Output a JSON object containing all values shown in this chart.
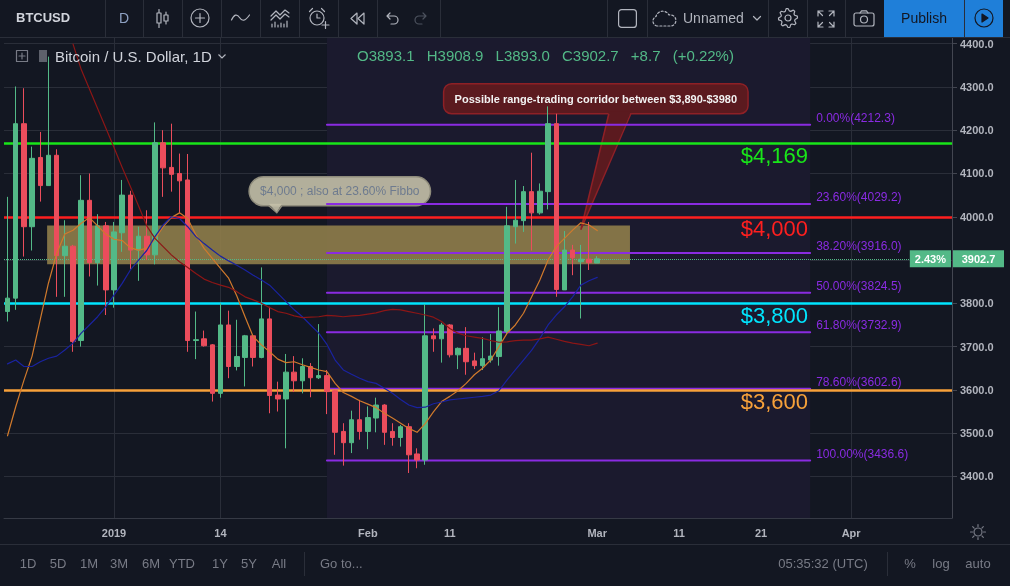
{
  "chart_data": {
    "type": "candlestick",
    "title": "Bitcoin / U.S. Dollar, 1D",
    "subtitle": "O3893.1 H3908.9 L3893.0 C3902.7 +8.7 (+0.22%)",
    "x": [
      "2018-12-19",
      "2018-12-20",
      "2018-12-21",
      "2018-12-22",
      "2018-12-23",
      "2018-12-24",
      "2018-12-25",
      "2018-12-26",
      "2018-12-27",
      "2018-12-28",
      "2018-12-29",
      "2018-12-30",
      "2018-12-31",
      "2019-01-01",
      "2019-01-02",
      "2019-01-03",
      "2019-01-04",
      "2019-01-05",
      "2019-01-06",
      "2019-01-07",
      "2019-01-08",
      "2019-01-09",
      "2019-01-10",
      "2019-01-11",
      "2019-01-12",
      "2019-01-13",
      "2019-01-14",
      "2019-01-15",
      "2019-01-16",
      "2019-01-17",
      "2019-01-18",
      "2019-01-19",
      "2019-01-20",
      "2019-01-21",
      "2019-01-22",
      "2019-01-23",
      "2019-01-24",
      "2019-01-25",
      "2019-01-26",
      "2019-01-27",
      "2019-01-28",
      "2019-01-29",
      "2019-01-30",
      "2019-01-31",
      "2019-02-01",
      "2019-02-02",
      "2019-02-03",
      "2019-02-04",
      "2019-02-05",
      "2019-02-06",
      "2019-02-07",
      "2019-02-08",
      "2019-02-09",
      "2019-02-10",
      "2019-02-11",
      "2019-02-12",
      "2019-02-13",
      "2019-02-14",
      "2019-02-15",
      "2019-02-16",
      "2019-02-17",
      "2019-02-18",
      "2019-02-19",
      "2019-02-20",
      "2019-02-21",
      "2019-02-22",
      "2019-02-23",
      "2019-02-24",
      "2019-02-25",
      "2019-02-26",
      "2019-02-27",
      "2019-02-28",
      "2019-03-01"
    ],
    "ohlc": [
      [
        3781,
        4046,
        3758,
        3812
      ],
      [
        3812,
        4301,
        3785,
        4215
      ],
      [
        4215,
        4297,
        3908,
        3977
      ],
      [
        3977,
        4162,
        3922,
        4135
      ],
      [
        4137,
        4196,
        4035,
        4072
      ],
      [
        4072,
        4370,
        4072,
        4142
      ],
      [
        4142,
        4156,
        3815,
        3910
      ],
      [
        3910,
        3992,
        3815,
        3932
      ],
      [
        3932,
        3935,
        3688,
        3712
      ],
      [
        3714,
        4096,
        3700,
        4038
      ],
      [
        4038,
        4100,
        3862,
        3894
      ],
      [
        3894,
        4006,
        3841,
        3979
      ],
      [
        3979,
        3988,
        3773,
        3831
      ],
      [
        3831,
        3988,
        3790,
        3965
      ],
      [
        3963,
        4085,
        3919,
        4050
      ],
      [
        4050,
        4060,
        3879,
        3923
      ],
      [
        3923,
        3977,
        3852,
        3955
      ],
      [
        3955,
        4015,
        3900,
        3912
      ],
      [
        3912,
        4218,
        3890,
        4171
      ],
      [
        4171,
        4200,
        4046,
        4113
      ],
      [
        4114,
        4215,
        4058,
        4098
      ],
      [
        4100,
        4146,
        4008,
        4083
      ],
      [
        4085,
        4145,
        3688,
        3714
      ],
      [
        3714,
        3781,
        3671,
        3716
      ],
      [
        3718,
        3737,
        3700,
        3702
      ],
      [
        3704,
        3706,
        3573,
        3592
      ],
      [
        3592,
        3800,
        3582,
        3750
      ],
      [
        3750,
        3783,
        3627,
        3654
      ],
      [
        3654,
        3762,
        3645,
        3677
      ],
      [
        3675,
        3727,
        3608,
        3725
      ],
      [
        3725,
        3727,
        3654,
        3675
      ],
      [
        3675,
        3883,
        3673,
        3764
      ],
      [
        3764,
        3792,
        3546,
        3587
      ],
      [
        3588,
        3619,
        3550,
        3579
      ],
      [
        3579,
        3683,
        3465,
        3641
      ],
      [
        3641,
        3678,
        3595,
        3621
      ],
      [
        3621,
        3673,
        3592,
        3654
      ],
      [
        3654,
        3662,
        3583,
        3628
      ],
      [
        3628,
        3752,
        3625,
        3633
      ],
      [
        3633,
        3646,
        3544,
        3596
      ],
      [
        3598,
        3600,
        3450,
        3502
      ],
      [
        3504,
        3523,
        3425,
        3478
      ],
      [
        3478,
        3552,
        3454,
        3531
      ],
      [
        3531,
        3577,
        3485,
        3504
      ],
      [
        3504,
        3562,
        3463,
        3536
      ],
      [
        3535,
        3582,
        3502,
        3565
      ],
      [
        3565,
        3567,
        3473,
        3502
      ],
      [
        3504,
        3523,
        3471,
        3490
      ],
      [
        3490,
        3519,
        3469,
        3515
      ],
      [
        3515,
        3523,
        3408,
        3450
      ],
      [
        3452,
        3465,
        3419,
        3438
      ],
      [
        3438,
        3798,
        3427,
        3725
      ],
      [
        3725,
        3742,
        3688,
        3718
      ],
      [
        3718,
        3755,
        3663,
        3750
      ],
      [
        3750,
        3752,
        3675,
        3681
      ],
      [
        3681,
        3698,
        3648,
        3696
      ],
      [
        3696,
        3745,
        3635,
        3665
      ],
      [
        3667,
        3686,
        3648,
        3656
      ],
      [
        3656,
        3722,
        3646,
        3672
      ],
      [
        3669,
        3729,
        3663,
        3678
      ],
      [
        3677,
        3791,
        3656,
        3736
      ],
      [
        3735,
        4023,
        3727,
        3979
      ],
      [
        3977,
        4085,
        3938,
        3992
      ],
      [
        3991,
        4071,
        3965,
        4058
      ],
      [
        4058,
        4148,
        3922,
        4009
      ],
      [
        4009,
        4077,
        4005,
        4059
      ],
      [
        4058,
        4255,
        4017,
        4215
      ],
      [
        4215,
        4238,
        3815,
        3832
      ],
      [
        3831,
        3967,
        3831,
        3923
      ],
      [
        3923,
        3935,
        3865,
        3905
      ],
      [
        3896,
        3935,
        3765,
        3902
      ],
      [
        3902,
        3988,
        3877,
        3894
      ],
      [
        3893.1,
        3908.9,
        3893.0,
        3902.7
      ]
    ],
    "colors": [
      "#53b987",
      "#53b987",
      "#eb4d5c",
      "#53b987",
      "#eb4d5c",
      "#53b987",
      "#eb4d5c",
      "#53b987",
      "#eb4d5c",
      "#53b987",
      "#eb4d5c",
      "#53b987",
      "#eb4d5c",
      "#53b987",
      "#53b987",
      "#eb4d5c",
      "#53b987",
      "#eb4d5c",
      "#53b987",
      "#eb4d5c",
      "#eb4d5c",
      "#eb4d5c",
      "#eb4d5c",
      "#53b987",
      "#eb4d5c",
      "#eb4d5c",
      "#53b987",
      "#eb4d5c",
      "#53b987",
      "#53b987",
      "#eb4d5c",
      "#53b987",
      "#eb4d5c",
      "#eb4d5c",
      "#53b987",
      "#eb4d5c",
      "#53b987",
      "#eb4d5c",
      "#53b987",
      "#eb4d5c",
      "#eb4d5c",
      "#eb4d5c",
      "#53b987",
      "#eb4d5c",
      "#53b987",
      "#53b987",
      "#eb4d5c",
      "#eb4d5c",
      "#53b987",
      "#eb4d5c",
      "#eb4d5c",
      "#53b987",
      "#eb4d5c",
      "#53b987",
      "#eb4d5c",
      "#53b987",
      "#eb4d5c",
      "#eb4d5c",
      "#53b987",
      "#53b987",
      "#53b987",
      "#53b987",
      "#53b987",
      "#53b987",
      "#eb4d5c",
      "#53b987",
      "#53b987",
      "#eb4d5c",
      "#53b987",
      "#eb4d5c",
      "#53b987",
      "#eb4d5c",
      "#53b987"
    ],
    "series": [
      {
        "type": "line",
        "color": "#d17a2c",
        "values": [
          3494,
          3561,
          3622,
          3678,
          3763,
          3847,
          3915,
          3960,
          3969,
          3985,
          3998,
          3979,
          3960,
          3948,
          3945,
          3928,
          3923,
          3927,
          3948,
          3977,
          3998,
          4009,
          3996,
          3958,
          3927,
          3904,
          3881,
          3858,
          3817,
          3769,
          3723,
          3704,
          3688,
          3671,
          3663,
          3665,
          3658,
          3652,
          3646,
          3642,
          3615,
          3594,
          3585,
          3575,
          3567,
          3559,
          3546,
          3535,
          3523,
          3511,
          3502,
          3522,
          3549,
          3573,
          3585,
          3598,
          3615,
          3635,
          3650,
          3669,
          3700,
          3731,
          3750,
          3777,
          3815,
          3854,
          3900,
          3931,
          3950,
          3969,
          3986,
          3981,
          3968
        ]
      },
      {
        "type": "line",
        "color": "#1a23a0",
        "values": [
          3660,
          3669,
          3654,
          3654,
          3665,
          3673,
          3678,
          3692,
          3708,
          3731,
          3750,
          3769,
          3792,
          3819,
          3846,
          3877,
          3900,
          3922,
          3954,
          3981,
          4000,
          3996,
          3977,
          3954,
          3938,
          3923,
          3909,
          3898,
          3888,
          3877,
          3865,
          3854,
          3842,
          3823,
          3804,
          3785,
          3769,
          3750,
          3731,
          3705,
          3669,
          3646,
          3636,
          3627,
          3619,
          3615,
          3604,
          3592,
          3578,
          3565,
          3559,
          3560,
          3568,
          3572,
          3577,
          3579,
          3581,
          3583,
          3585,
          3588,
          3598,
          3623,
          3646,
          3669,
          3692,
          3719,
          3750,
          3773,
          3792,
          3815,
          3842,
          3852,
          3860
        ]
      },
      {
        "type": "line",
        "color": "#8c1616",
        "values": [
          null,
          null,
          null,
          null,
          null,
          null,
          null,
          null,
          4399,
          4340,
          4295,
          4250,
          4205,
          4160,
          4114,
          4070,
          4025,
          3979,
          3950,
          3931,
          3912,
          3896,
          3883,
          3869,
          3856,
          3848,
          3842,
          3837,
          3827,
          3815,
          3808,
          3800,
          3790,
          3781,
          3777,
          3771,
          3767,
          3768,
          3769,
          3772,
          3771,
          3769,
          3771,
          3772,
          3775,
          3778,
          3783,
          3786,
          3785,
          3781,
          3777,
          3773,
          3768,
          3758,
          3742,
          3731,
          3725,
          3722,
          3719,
          3714,
          3710,
          3711,
          3714,
          3715,
          3715,
          3718,
          3722,
          3717,
          3712,
          3708,
          3705,
          3702,
          3708
        ]
      },
      {
        "type": "line",
        "color": "#8f7d4a",
        "x": [
          "2018-12-23T20:00",
          "2019-03-05"
        ],
        "values": [
          null,
          null
        ],
        "lower": [
          3890,
          3890
        ],
        "upper": [
          3980,
          3980
        ]
      },
      {
        "type": "line",
        "name": "0.00%(4212.3)",
        "color": "#8a2be2",
        "x": [
          "2019-01-27",
          "2019-03-27"
        ],
        "values": [
          4212.3,
          4212.3
        ]
      },
      {
        "type": "line",
        "name": "23.60%(4029.2)",
        "color": "#8a2be2",
        "x": [
          "2019-01-27",
          "2019-03-27"
        ],
        "values": [
          4029.2,
          4029.2
        ]
      },
      {
        "type": "line",
        "name": "38.20%(3916.0)",
        "color": "#8a2be2",
        "x": [
          "2019-01-27",
          "2019-03-27"
        ],
        "values": [
          3916.0,
          3916.0
        ]
      },
      {
        "type": "line",
        "name": "50.00%(3824.5)",
        "color": "#8a2be2",
        "x": [
          "2019-01-27",
          "2019-03-27"
        ],
        "values": [
          3824.5,
          3824.5
        ]
      },
      {
        "type": "line",
        "name": "61.80%(3732.9)",
        "color": "#8a2be2",
        "x": [
          "2019-01-27",
          "2019-03-27"
        ],
        "values": [
          3732.9,
          3732.9
        ]
      },
      {
        "type": "line",
        "name": "78.60%(3602.6)",
        "color": "#8a2be2",
        "x": [
          "2019-01-27",
          "2019-03-27"
        ],
        "values": [
          3602.6,
          3602.6
        ]
      },
      {
        "type": "line",
        "name": "100.00%(3436.6)",
        "color": "#8a2be2",
        "x": [
          "2019-01-27",
          "2019-03-27"
        ],
        "values": [
          3436.6,
          3436.6
        ]
      }
    ],
    "ref_lines": [
      {
        "axis": "y",
        "value": 4169,
        "label": "$4,169",
        "color": "#19e619"
      },
      {
        "axis": "y",
        "value": 4000,
        "label": "$4,000",
        "color": "#ff1f1f"
      },
      {
        "axis": "y",
        "value": 3800,
        "label": "$3,800",
        "color": "#00e5ff"
      },
      {
        "axis": "y",
        "value": 3600,
        "label": "$3,600",
        "color": "#f7a13a"
      },
      {
        "axis": "y",
        "value": 3902.7,
        "label": "3902.7",
        "color": "#53b987",
        "line_style": "dotted"
      }
    ],
    "bands": [
      {
        "axis": "x",
        "from": "2019-01-27",
        "to": "2019-03-27",
        "color": "#1b1a2e"
      }
    ],
    "annotations": [
      {
        "text": "$4,000 ; also at 23.60% Fibbo",
        "x": "2019-01-21",
        "y": 4000
      },
      {
        "text": "Possible range-trading corridor between $3,890-$3980",
        "x": "2019-02-27",
        "y": 3970
      },
      {
        "text": "2.43%",
        "y": 3902.7
      },
      "BTCUSD",
      "D",
      "Unnamed",
      "Publish",
      "1D",
      "5D",
      "1M",
      "3M",
      "6M",
      "YTD",
      "1Y",
      "5Y",
      "All",
      "Go to...",
      "05:35:32 (UTC)",
      "%",
      "log",
      "auto"
    ],
    "xlim": [
      "2018-12-18T13:40",
      "2019-04-13T07:40"
    ],
    "xticks": [
      {
        "value": "2019-01-01",
        "label": "2019"
      },
      {
        "value": "2019-01-14",
        "label": "14"
      },
      {
        "value": "2019-02-01",
        "label": "Feb"
      },
      {
        "value": "2019-02-11",
        "label": "11"
      },
      {
        "value": "2019-03-01",
        "label": "Mar"
      },
      {
        "value": "2019-03-11",
        "label": "11"
      },
      {
        "value": "2019-03-21",
        "label": "21"
      },
      {
        "value": "2019-04-01",
        "label": "Apr"
      }
    ],
    "ylim": [
      3304,
      4413
    ],
    "yticks": [
      {
        "value": 3400,
        "label": "3400.0"
      },
      {
        "value": 3500,
        "label": "3500.0"
      },
      {
        "value": 3600,
        "label": "3600.0"
      },
      {
        "value": 3700,
        "label": "3700.0"
      },
      {
        "value": 3800,
        "label": "3800.0"
      },
      {
        "value": 3900,
        "label": null
      },
      {
        "value": 4000,
        "label": "4000.0"
      },
      {
        "value": 4100,
        "label": "4100.0"
      },
      {
        "value": 4200,
        "label": "4200.0"
      },
      {
        "value": 4300,
        "label": "4300.0"
      },
      {
        "value": 4400,
        "label": "4400.0"
      }
    ],
    "grid": true,
    "marker": "none"
  }
}
